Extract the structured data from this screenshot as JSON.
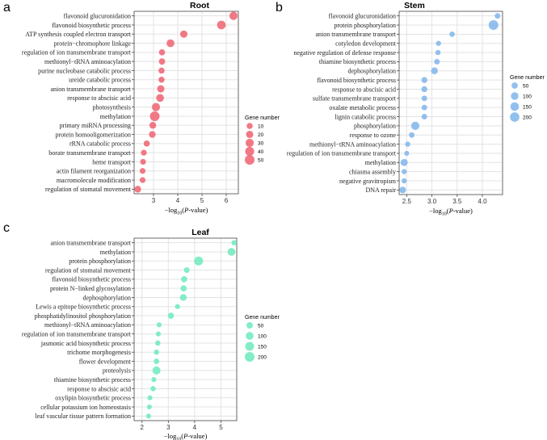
{
  "chart_data": [
    {
      "panel": "a",
      "type": "scatter",
      "title": "Root",
      "color": "#f06a78",
      "xlabel_main": "−log",
      "xlabel_sub": "10",
      "xlabel_italic": "P",
      "xlabel_tail": "-value)",
      "xlabel_open": "(",
      "xlim": [
        2.2,
        6.5
      ],
      "xticks": [
        3,
        4,
        5,
        6
      ],
      "categories": [
        "flavonoid glucuronidation",
        "flavonoid biosynthetic process",
        "ATP synthesis coupled electron transport",
        "protein−chromophore linkage",
        "regulation of ion transmembrane transport",
        "methionyl−tRNA aminoacylation",
        "purine nucleobase catabolic process",
        "ureide catabolic process",
        "anion transmembrane transport",
        "response to abscisic acid",
        "photosynthesis",
        "methylation",
        "primary miRNA processing",
        "protein homooligomerization",
        "rRNA catabolic process",
        "borate transmembrane transport",
        "heme transport",
        "actin filament reorganization",
        "macromolecule modification",
        "regulation of stomatal movement"
      ],
      "x": [
        6.3,
        5.8,
        4.25,
        3.7,
        3.35,
        3.35,
        3.33,
        3.33,
        3.3,
        3.27,
        3.1,
        3.05,
        2.97,
        2.95,
        2.72,
        2.6,
        2.57,
        2.55,
        2.55,
        2.35
      ],
      "gene_number": [
        30,
        35,
        20,
        25,
        10,
        12,
        10,
        10,
        20,
        25,
        30,
        50,
        15,
        15,
        10,
        8,
        8,
        8,
        8,
        15
      ],
      "legend": {
        "title": "Gene number",
        "values": [
          10,
          20,
          30,
          40,
          50
        ]
      }
    },
    {
      "panel": "b",
      "type": "scatter",
      "title": "Stem",
      "color": "#86b9ec",
      "xlabel_main": "−log",
      "xlabel_sub": "10",
      "xlabel_italic": "P",
      "xlabel_tail": "-value)",
      "xlabel_open": "(",
      "xlim": [
        2.35,
        4.4
      ],
      "xticks": [
        2.5,
        3.0,
        3.5,
        4.0
      ],
      "xtick_labels": [
        "2.5",
        "3.0",
        "3.5",
        "4.0"
      ],
      "categories": [
        "flavonoid glucuronidation",
        "protein phosphorylation",
        "anion transmembrane transport",
        "cotyledon development",
        "negative regulation of defense response",
        "thiamine biosynthetic process",
        "dephosphorylation",
        "flavonoid biosynthetic process",
        "response to abscisic acid",
        "sulfate transmembrane transport",
        "oxalate metabolic process",
        "lignin catabolic process",
        "phosphorylation",
        "response to ozone",
        "methionyl−tRNA aminoacylation",
        "regulation of ion transmembrane transport",
        "methylation",
        "chiasma assembly",
        "negative gravitropism",
        "DNA repair"
      ],
      "x": [
        4.3,
        4.22,
        3.4,
        3.13,
        3.12,
        3.1,
        3.05,
        2.85,
        2.85,
        2.85,
        2.85,
        2.85,
        2.67,
        2.6,
        2.52,
        2.5,
        2.45,
        2.45,
        2.45,
        2.42
      ],
      "gene_number": [
        30,
        220,
        25,
        20,
        20,
        30,
        70,
        40,
        40,
        30,
        30,
        30,
        130,
        30,
        20,
        15,
        80,
        20,
        20,
        60
      ],
      "legend": {
        "title": "Gene number",
        "values": [
          50,
          100,
          150,
          200
        ]
      }
    },
    {
      "panel": "c",
      "type": "scatter",
      "title": "Leaf",
      "color": "#74ebc0",
      "xlabel_main": "−log",
      "xlabel_sub": "10",
      "xlabel_italic": "P",
      "xlabel_tail": "-value)",
      "xlabel_open": "(",
      "xlim": [
        1.7,
        5.6
      ],
      "xticks": [
        2,
        3,
        4,
        5
      ],
      "categories": [
        "anion transmembrane transport",
        "methylation",
        "protein phosphorylation",
        "regulation of stomatal movement",
        "flavonoid biosynthetic process",
        "protein N−linked glycosylation",
        "dephosphorylation",
        "Lewis a epitope biosynthetic process",
        "phosphatidylinositol phosphorylation",
        "methionyl−tRNA aminoacylation",
        "regulation of ion transmembrane transport",
        "jasmonic acid biosynthetic process",
        "trichome morphogenesis",
        "flower development",
        "proteolysis",
        "thiamine biosynthetic process",
        "response to abscisic acid",
        "oxylipin biosynthetic process",
        "cellular potassium ion homeostasis",
        "leaf vascular tissue pattern formation"
      ],
      "x": [
        5.5,
        5.4,
        4.15,
        3.7,
        3.6,
        3.58,
        3.57,
        3.35,
        3.1,
        2.65,
        2.62,
        2.6,
        2.55,
        2.55,
        2.55,
        2.45,
        2.42,
        2.3,
        2.28,
        2.25
      ],
      "gene_number": [
        20,
        100,
        150,
        30,
        40,
        40,
        60,
        15,
        40,
        15,
        15,
        20,
        20,
        25,
        110,
        15,
        20,
        15,
        15,
        15
      ],
      "legend": {
        "title": "Gene number",
        "values": [
          50,
          100,
          150,
          200
        ]
      }
    }
  ]
}
